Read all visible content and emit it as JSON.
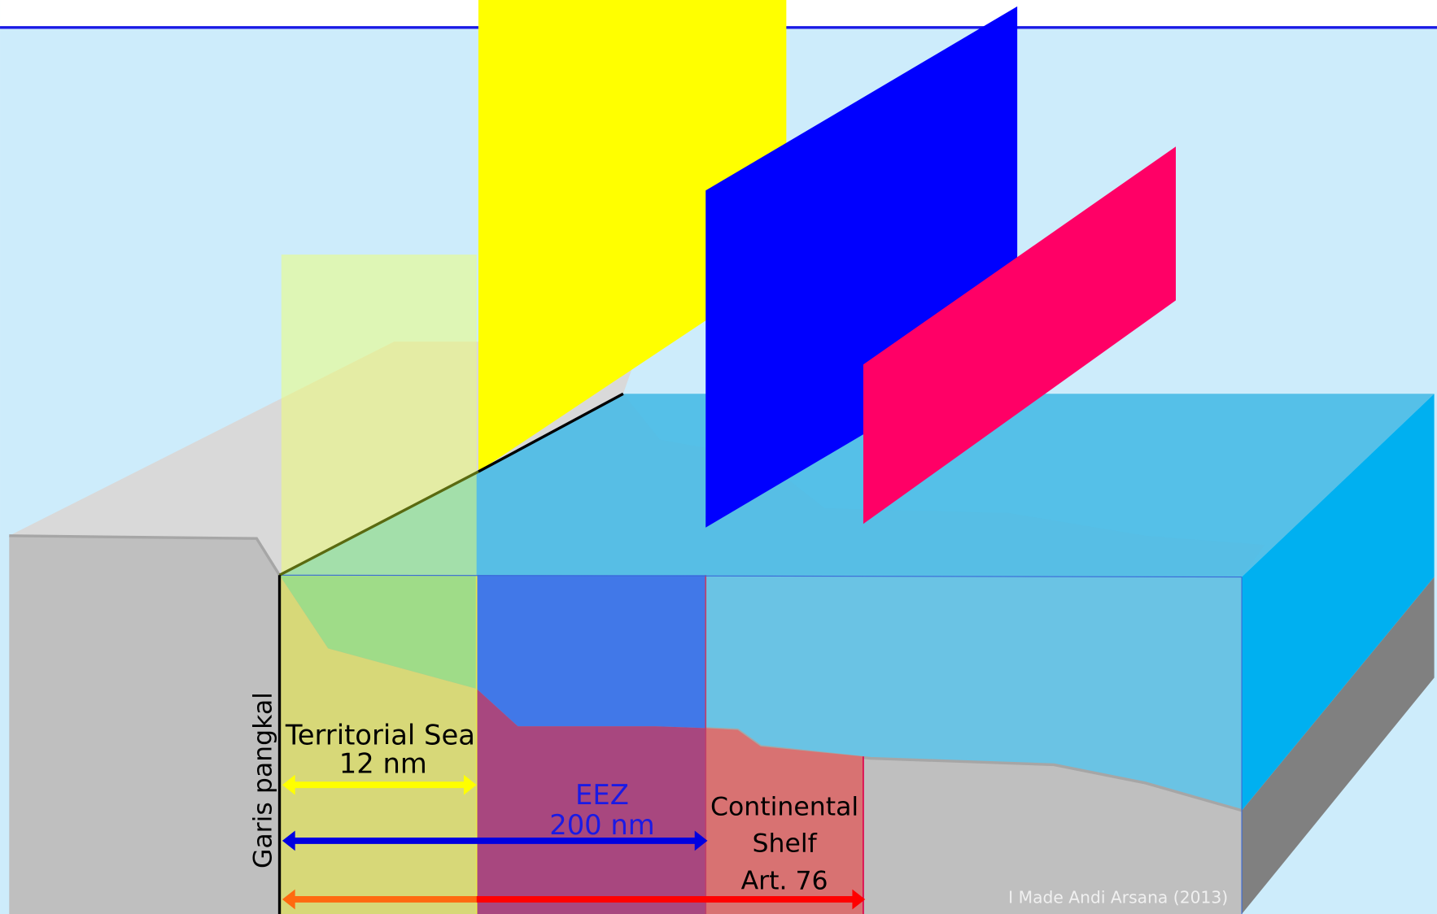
{
  "labels": {
    "baseline": "Garis pangkal",
    "territorial_sea": "Territorial Sea",
    "territorial_sea_distance": "12 nm",
    "eez": "EEZ",
    "eez_distance": "200 nm",
    "continental_shelf_line1": "Continental",
    "continental_shelf_line2": "Shelf",
    "continental_shelf_line3": "Art. 76",
    "credit": "I Made Andi Arsana (2013)"
  }
}
